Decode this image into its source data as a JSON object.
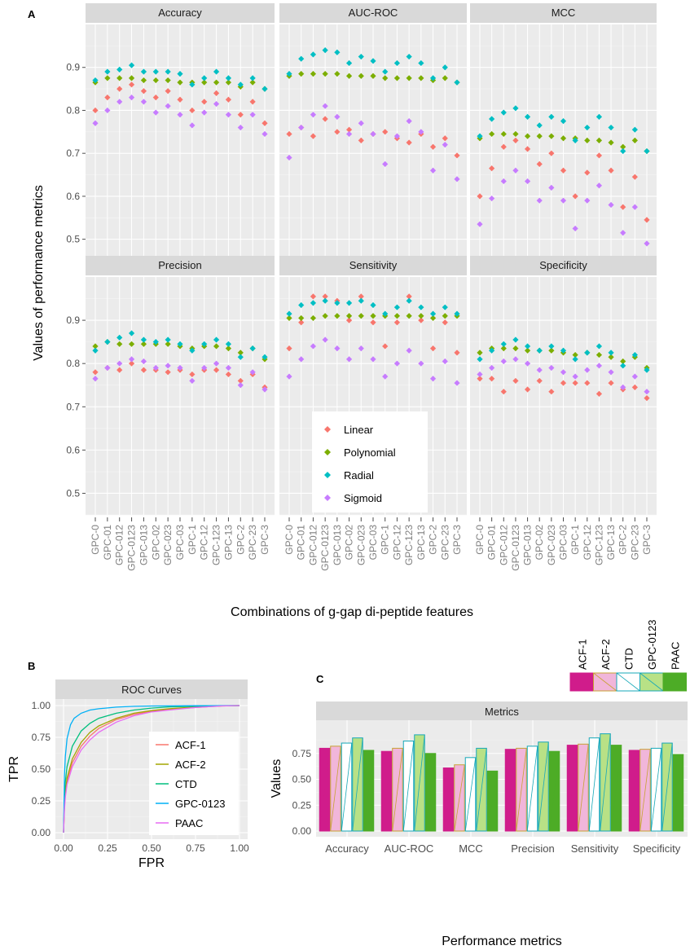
{
  "panel_labels": {
    "a": "A",
    "b": "B",
    "c": "C"
  },
  "colors": {
    "Linear": "#F8766D",
    "Polynomial": "#7CAE00",
    "Radial": "#00BFC4",
    "Sigmoid": "#C77CFF",
    "ACF-1": "#F8766D",
    "ACF-2": "#A3A500",
    "CTD": "#00BF7D",
    "GPC-0123": "#00B0F6",
    "PAAC": "#E76BF3",
    "panel_bg": "#EBEBEB",
    "strip_bg": "#D9D9D9",
    "bar_ACF-1": "#D01C8B",
    "bar_ACF-2": "#F1B6DA",
    "bar_CTD": "#FFFFFF",
    "bar_GPC-0123": "#B8E186",
    "bar_PAAC": "#4DAC26",
    "outline_ACF-1": "#D01C8B",
    "outline_ACF-2": "#C8A235",
    "outline_CTD": "#17A8B8",
    "outline_GPC-0123": "#17A8B8",
    "outline_PAAC": "#4DAC26"
  },
  "chart_data": [
    {
      "type": "scatter",
      "panel": "A",
      "ylabel": "Values of performance metrics",
      "xlabel": "Combinations of g-gap di-peptide features",
      "ylim": [
        0.45,
        1.0
      ],
      "yticks": [
        0.5,
        0.6,
        0.7,
        0.8,
        0.9
      ],
      "categories": [
        "GPC-0",
        "GPC-01",
        "GPC-012",
        "GPC-0123",
        "GPC-013",
        "GPC-02",
        "GPC-023",
        "GPC-03",
        "GPC-1",
        "GPC-12",
        "GPC-123",
        "GPC-13",
        "GPC-2",
        "GPC-23",
        "GPC-3"
      ],
      "series_names": [
        "Linear",
        "Polynomial",
        "Radial",
        "Sigmoid"
      ],
      "facets": [
        {
          "title": "Accuracy",
          "series": {
            "Linear": [
              0.8,
              0.83,
              0.85,
              0.86,
              0.845,
              0.83,
              0.845,
              0.825,
              0.8,
              0.82,
              0.84,
              0.825,
              0.79,
              0.82,
              0.77
            ],
            "Polynomial": [
              0.865,
              0.875,
              0.875,
              0.875,
              0.87,
              0.87,
              0.87,
              0.865,
              0.865,
              0.865,
              0.865,
              0.865,
              0.855,
              0.865,
              0.85
            ],
            "Radial": [
              0.87,
              0.89,
              0.895,
              0.905,
              0.89,
              0.89,
              0.89,
              0.885,
              0.86,
              0.875,
              0.89,
              0.875,
              0.86,
              0.875,
              0.85
            ],
            "Sigmoid": [
              0.77,
              0.8,
              0.82,
              0.83,
              0.82,
              0.795,
              0.81,
              0.79,
              0.765,
              0.795,
              0.815,
              0.79,
              0.76,
              0.79,
              0.745
            ]
          }
        },
        {
          "title": "AUC-ROC",
          "series": {
            "Linear": [
              0.745,
              0.76,
              0.74,
              0.78,
              0.75,
              0.755,
              0.73,
              0.745,
              0.75,
              0.735,
              0.725,
              0.745,
              0.715,
              0.735,
              0.695
            ],
            "Polynomial": [
              0.88,
              0.885,
              0.885,
              0.885,
              0.885,
              0.88,
              0.88,
              0.88,
              0.875,
              0.875,
              0.875,
              0.875,
              0.87,
              0.875,
              0.865
            ],
            "Radial": [
              0.885,
              0.92,
              0.93,
              0.94,
              0.935,
              0.91,
              0.925,
              0.915,
              0.89,
              0.91,
              0.925,
              0.91,
              0.875,
              0.9,
              0.865
            ],
            "Sigmoid": [
              0.69,
              0.76,
              0.79,
              0.81,
              0.785,
              0.745,
              0.77,
              0.745,
              0.675,
              0.74,
              0.775,
              0.75,
              0.66,
              0.72,
              0.64
            ]
          }
        },
        {
          "title": "MCC",
          "series": {
            "Linear": [
              0.6,
              0.665,
              0.715,
              0.73,
              0.71,
              0.675,
              0.7,
              0.66,
              0.6,
              0.655,
              0.695,
              0.66,
              0.575,
              0.645,
              0.545
            ],
            "Polynomial": [
              0.735,
              0.745,
              0.745,
              0.745,
              0.74,
              0.74,
              0.74,
              0.735,
              0.735,
              0.73,
              0.73,
              0.725,
              0.715,
              0.73,
              0.705
            ],
            "Radial": [
              0.74,
              0.78,
              0.795,
              0.805,
              0.785,
              0.765,
              0.785,
              0.775,
              0.73,
              0.76,
              0.785,
              0.76,
              0.705,
              0.755,
              0.705
            ],
            "Sigmoid": [
              0.535,
              0.595,
              0.635,
              0.66,
              0.635,
              0.59,
              0.62,
              0.59,
              0.525,
              0.59,
              0.625,
              0.58,
              0.515,
              0.575,
              0.49
            ]
          }
        },
        {
          "title": "Precision",
          "series": {
            "Linear": [
              0.78,
              0.79,
              0.785,
              0.8,
              0.785,
              0.785,
              0.78,
              0.785,
              0.775,
              0.785,
              0.785,
              0.775,
              0.76,
              0.775,
              0.745
            ],
            "Polynomial": [
              0.84,
              0.85,
              0.845,
              0.845,
              0.845,
              0.845,
              0.845,
              0.84,
              0.835,
              0.84,
              0.84,
              0.835,
              0.825,
              0.835,
              0.81
            ],
            "Radial": [
              0.83,
              0.85,
              0.86,
              0.87,
              0.855,
              0.85,
              0.855,
              0.845,
              0.83,
              0.845,
              0.855,
              0.845,
              0.815,
              0.835,
              0.815
            ],
            "Sigmoid": [
              0.765,
              0.79,
              0.8,
              0.81,
              0.805,
              0.79,
              0.795,
              0.79,
              0.76,
              0.79,
              0.8,
              0.79,
              0.75,
              0.78,
              0.74
            ]
          }
        },
        {
          "title": "Sensitivity",
          "series": {
            "Linear": [
              0.835,
              0.895,
              0.955,
              0.955,
              0.945,
              0.9,
              0.955,
              0.895,
              0.84,
              0.895,
              0.955,
              0.9,
              0.835,
              0.895,
              0.825
            ],
            "Polynomial": [
              0.905,
              0.905,
              0.905,
              0.91,
              0.91,
              0.91,
              0.91,
              0.91,
              0.91,
              0.91,
              0.91,
              0.91,
              0.905,
              0.91,
              0.91
            ],
            "Radial": [
              0.915,
              0.935,
              0.94,
              0.945,
              0.94,
              0.94,
              0.945,
              0.935,
              0.915,
              0.93,
              0.945,
              0.93,
              0.915,
              0.93,
              0.915
            ],
            "Sigmoid": [
              0.77,
              0.81,
              0.84,
              0.855,
              0.835,
              0.81,
              0.835,
              0.81,
              0.77,
              0.8,
              0.83,
              0.8,
              0.765,
              0.805,
              0.755
            ]
          }
        },
        {
          "title": "Specificity",
          "series": {
            "Linear": [
              0.765,
              0.765,
              0.735,
              0.76,
              0.74,
              0.76,
              0.735,
              0.755,
              0.755,
              0.755,
              0.73,
              0.755,
              0.74,
              0.745,
              0.72
            ],
            "Polynomial": [
              0.825,
              0.835,
              0.835,
              0.835,
              0.83,
              0.83,
              0.83,
              0.825,
              0.82,
              0.825,
              0.82,
              0.815,
              0.805,
              0.815,
              0.79
            ],
            "Radial": [
              0.81,
              0.83,
              0.845,
              0.855,
              0.84,
              0.83,
              0.84,
              0.83,
              0.81,
              0.825,
              0.84,
              0.825,
              0.795,
              0.82,
              0.785
            ],
            "Sigmoid": [
              0.775,
              0.79,
              0.805,
              0.81,
              0.8,
              0.785,
              0.79,
              0.78,
              0.77,
              0.785,
              0.795,
              0.78,
              0.745,
              0.77,
              0.735
            ]
          }
        }
      ],
      "legend": {
        "position": "inside-bottom-center",
        "labels": [
          "Linear",
          "Polynomial",
          "Radial",
          "Sigmoid"
        ]
      }
    },
    {
      "type": "line",
      "panel": "B",
      "title": "ROC Curves",
      "xlabel": "FPR",
      "ylabel": "TPR",
      "xlim": [
        0,
        1
      ],
      "ylim": [
        0,
        1
      ],
      "xticks": [
        "0.00",
        "0.25",
        "0.50",
        "0.75",
        "1.00"
      ],
      "yticks": [
        "0.00",
        "0.25",
        "0.50",
        "0.75",
        "1.00"
      ],
      "legend": {
        "position": "inside-bottom-right",
        "labels": [
          "ACF-1",
          "ACF-2",
          "CTD",
          "GPC-0123",
          "PAAC"
        ]
      },
      "series": [
        {
          "name": "ACF-1",
          "x": [
            0,
            0.005,
            0.01,
            0.02,
            0.05,
            0.1,
            0.15,
            0.2,
            0.3,
            0.4,
            0.5,
            0.6,
            0.75,
            0.9,
            1.0
          ],
          "y": [
            0,
            0.2,
            0.3,
            0.4,
            0.55,
            0.68,
            0.76,
            0.82,
            0.89,
            0.93,
            0.955,
            0.97,
            0.985,
            0.997,
            1.0
          ]
        },
        {
          "name": "ACF-2",
          "x": [
            0,
            0.005,
            0.01,
            0.02,
            0.05,
            0.1,
            0.15,
            0.2,
            0.3,
            0.4,
            0.5,
            0.6,
            0.75,
            0.9,
            1.0
          ],
          "y": [
            0,
            0.22,
            0.32,
            0.43,
            0.58,
            0.71,
            0.79,
            0.84,
            0.9,
            0.94,
            0.96,
            0.975,
            0.99,
            0.998,
            1.0
          ]
        },
        {
          "name": "CTD",
          "x": [
            0,
            0.005,
            0.01,
            0.02,
            0.05,
            0.1,
            0.15,
            0.2,
            0.3,
            0.4,
            0.5,
            0.6,
            0.75,
            0.9,
            1.0
          ],
          "y": [
            0,
            0.28,
            0.4,
            0.52,
            0.68,
            0.8,
            0.86,
            0.9,
            0.94,
            0.965,
            0.98,
            0.99,
            0.995,
            0.999,
            1.0
          ]
        },
        {
          "name": "GPC-0123",
          "x": [
            0,
            0.005,
            0.01,
            0.02,
            0.04,
            0.06,
            0.1,
            0.15,
            0.2,
            0.3,
            0.4,
            0.5,
            0.75,
            1.0
          ],
          "y": [
            0,
            0.45,
            0.6,
            0.74,
            0.85,
            0.9,
            0.94,
            0.965,
            0.975,
            0.988,
            0.994,
            0.997,
            0.999,
            1.0
          ]
        },
        {
          "name": "PAAC",
          "x": [
            0,
            0.005,
            0.01,
            0.02,
            0.05,
            0.1,
            0.15,
            0.2,
            0.3,
            0.4,
            0.5,
            0.6,
            0.75,
            0.9,
            1.0
          ],
          "y": [
            0,
            0.18,
            0.28,
            0.38,
            0.52,
            0.65,
            0.73,
            0.79,
            0.87,
            0.92,
            0.95,
            0.965,
            0.985,
            0.997,
            1.0
          ]
        }
      ]
    },
    {
      "type": "bar",
      "panel": "C",
      "title": "Metrics",
      "xlabel": "Performance metrics",
      "ylabel": "Values",
      "ylim": [
        0,
        1.0
      ],
      "yticks": [
        "0.00",
        "0.25",
        "0.50",
        "0.75"
      ],
      "categories": [
        "Accuracy",
        "AUC-ROC",
        "MCC",
        "Precision",
        "Sensitivity",
        "Specificity"
      ],
      "legend": {
        "position": "top-right",
        "labels": [
          "ACF-1",
          "ACF-2",
          "CTD",
          "GPC-0123",
          "PAAC"
        ]
      },
      "series": [
        {
          "name": "ACF-1",
          "values": [
            0.8,
            0.77,
            0.61,
            0.79,
            0.83,
            0.78
          ]
        },
        {
          "name": "ACF-2",
          "values": [
            0.82,
            0.8,
            0.64,
            0.8,
            0.84,
            0.79
          ]
        },
        {
          "name": "CTD",
          "values": [
            0.85,
            0.87,
            0.71,
            0.82,
            0.9,
            0.8
          ]
        },
        {
          "name": "GPC-0123",
          "values": [
            0.9,
            0.93,
            0.8,
            0.86,
            0.94,
            0.85
          ]
        },
        {
          "name": "PAAC",
          "values": [
            0.78,
            0.75,
            0.58,
            0.77,
            0.83,
            0.74
          ]
        }
      ]
    }
  ]
}
